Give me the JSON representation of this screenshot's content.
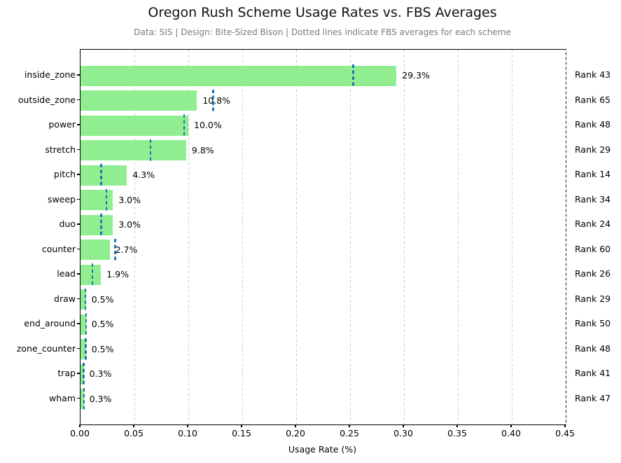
{
  "title": "Oregon Rush Scheme Usage Rates vs. FBS Averages",
  "subtitle": "Data: SIS | Design: Bite-Sized Bison | Dotted lines indicate FBS averages for each scheme",
  "colors": {
    "bar_fill": "#90EE90",
    "fbs_dashed_line": "#1f77b4",
    "gridline": "#cfcfcf",
    "subtitle_text": "#7a7a7a",
    "axis_and_text": "#000000"
  },
  "chart_data": {
    "type": "bar",
    "orientation": "horizontal",
    "title": "Oregon Rush Scheme Usage Rates vs. FBS Averages",
    "subtitle": "Data: SIS | Design: Bite-Sized Bison | Dotted lines indicate FBS averages for each scheme",
    "xlabel": "Usage Rate (%)",
    "xlim": [
      0,
      0.45
    ],
    "xticks": [
      "0.00",
      "0.05",
      "0.10",
      "0.15",
      "0.20",
      "0.25",
      "0.30",
      "0.35",
      "0.40",
      "0.45"
    ],
    "grid": "vertical-dashed",
    "categories": [
      "inside_zone",
      "outside_zone",
      "power",
      "stretch",
      "pitch",
      "sweep",
      "duo",
      "counter",
      "lead",
      "draw",
      "end_around",
      "zone_counter",
      "trap",
      "wham"
    ],
    "series": [
      {
        "name": "Oregon usage rate",
        "values": [
          0.293,
          0.108,
          0.1,
          0.098,
          0.043,
          0.03,
          0.03,
          0.027,
          0.019,
          0.005,
          0.005,
          0.005,
          0.003,
          0.003
        ]
      },
      {
        "name": "FBS average (dotted line)",
        "values": [
          0.253,
          0.123,
          0.096,
          0.065,
          0.019,
          0.024,
          0.019,
          0.032,
          0.011,
          0.0045,
          0.0052,
          0.0048,
          0.0028,
          0.0032
        ]
      }
    ],
    "bar_value_labels": [
      "29.3%",
      "10.8%",
      "10.0%",
      "9.8%",
      "4.3%",
      "3.0%",
      "3.0%",
      "2.7%",
      "1.9%",
      "0.5%",
      "0.5%",
      "0.5%",
      "0.3%",
      "0.3%"
    ],
    "rank_labels": [
      "Rank 43",
      "Rank 65",
      "Rank 48",
      "Rank 29",
      "Rank 14",
      "Rank 34",
      "Rank 24",
      "Rank 60",
      "Rank 26",
      "Rank 29",
      "Rank 50",
      "Rank 48",
      "Rank 41",
      "Rank 47"
    ]
  }
}
